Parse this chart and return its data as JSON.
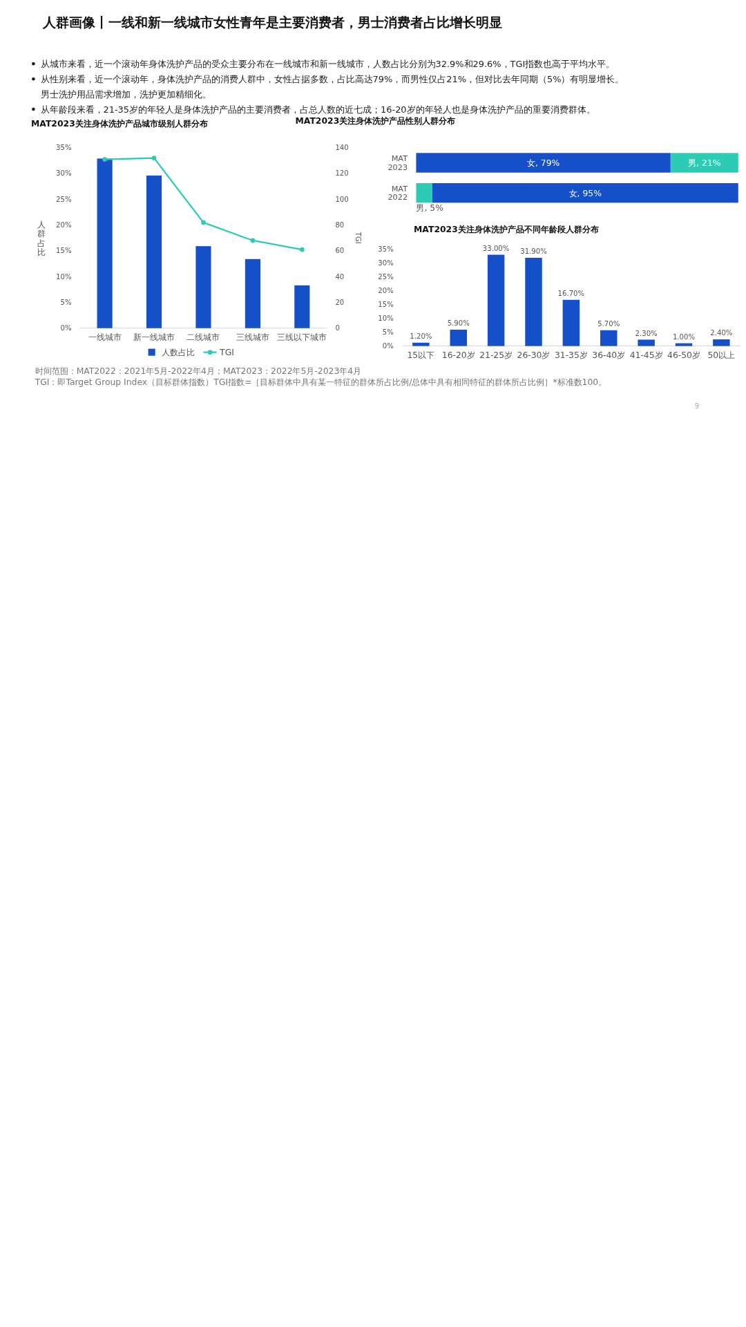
{
  "chart_data": [
    {
      "type": "other",
      "title": "人群画像丨一线和新一线城市女性青年是主要消费者，男士消费者占比增长明显",
      "annotations": [
        "从城市来看，近一个滚动年身体洗护产品的受众主要分布在一线城市和新一线城市，人数占比分别为32.9%和29.6%，TGI指数也高于平均水平。",
        "从性别来看，近一个滚动年，身体洗护产品的消费人群中，女性占据多数，占比高达79%，而男性仅占21%，但对比去年同期（5%）有明显增长。男士洗护用品需求增加，洗护更加精细化。",
        "从年龄段来看，21-35岁的年轻人是身体洗护产品的主要消费者，占总人数的近七成；16-20岁的年轻人也是身体洗护产品的重要消费群体。"
      ]
    },
    {
      "type": "bar",
      "title": "MAT2023关注身体洗护产品城市级别人群分布",
      "categories": [
        "一线城市",
        "新一线城市",
        "二线城市",
        "三线城市",
        "三线以下城市"
      ],
      "ylabel": "人群占比",
      "y2label": "TGI",
      "series": [
        {
          "name": "人数占比",
          "color": "#1650c8",
          "values": [
            32.9,
            29.6,
            15.9,
            13.4,
            8.3
          ]
        },
        {
          "name": "TGI",
          "type": "line",
          "axis": "y2",
          "color": "#2ecbb4",
          "values": [
            131,
            132,
            82,
            68,
            61
          ]
        }
      ],
      "ylim": [
        0,
        35
      ],
      "yticks": [
        {
          "value": 0,
          "label": "0%"
        },
        {
          "value": 5,
          "label": "5%"
        },
        {
          "value": 10,
          "label": "10%"
        },
        {
          "value": 15,
          "label": "15%"
        },
        {
          "value": 20,
          "label": "20%"
        },
        {
          "value": 25,
          "label": "25%"
        },
        {
          "value": 30,
          "label": "30%"
        },
        {
          "value": 35,
          "label": "35%"
        }
      ],
      "y2lim": [
        0,
        140
      ],
      "y2ticks": [
        0,
        20,
        40,
        60,
        80,
        100,
        120,
        140
      ],
      "marker": "circle",
      "legend": "bottom"
    },
    {
      "type": "bar",
      "title": "MAT2023关注身体洗护产品性别人群分布",
      "orientation": "horizontal",
      "stacked": true,
      "categories": [
        "MAT 2023",
        "MAT 2022"
      ],
      "series": [
        {
          "color": "#2ecbb4",
          "values": [
            null,
            5
          ],
          "value_labels": [
            null,
            "男, 5%"
          ]
        },
        {
          "color": "#1650c8",
          "values": [
            79,
            95
          ],
          "value_labels": [
            "女, 79%",
            "女, 95%"
          ]
        },
        {
          "color": "#2ecbb4",
          "values": [
            21,
            null
          ],
          "value_labels": [
            "男, 21%",
            null
          ]
        }
      ]
    },
    {
      "type": "bar",
      "title": "MAT2023关注身体洗护产品不同年龄段人群分布",
      "categories": [
        "15以下",
        "16-20岁",
        "21-25岁",
        "26-30岁",
        "31-35岁",
        "36-40岁",
        "41-45岁",
        "46-50岁",
        "50以上"
      ],
      "color": "#1650c8",
      "values": [
        1.2,
        5.9,
        33.0,
        31.9,
        16.7,
        5.7,
        2.3,
        1.0,
        2.4
      ],
      "value_labels": [
        "1.20%",
        "5.90%",
        "33.00%",
        "31.90%",
        "16.70%",
        "5.70%",
        "2.30%",
        "1.00%",
        "2.40%"
      ],
      "ylim": [
        0,
        35
      ],
      "yticks": [
        {
          "value": 0,
          "label": "0%"
        },
        {
          "value": 5,
          "label": "5%"
        },
        {
          "value": 10,
          "label": "10%"
        },
        {
          "value": 15,
          "label": "15%"
        },
        {
          "value": 20,
          "label": "20%"
        },
        {
          "value": 25,
          "label": "25%"
        },
        {
          "value": 30,
          "label": "30%"
        },
        {
          "value": 35,
          "label": "35%"
        }
      ]
    },
    {
      "type": "other",
      "annotations": [
        "时间范围：MAT2022：2021年5月-2022年4月；MAT2023：2022年5月-2023年4月",
        "TGI：即Target Group Index（目标群体指数）TGI指数=［目标群体中具有某一特征的群体所占比例/总体中具有相同特征的群体所占比例］*标准数100。",
        "9"
      ]
    }
  ]
}
